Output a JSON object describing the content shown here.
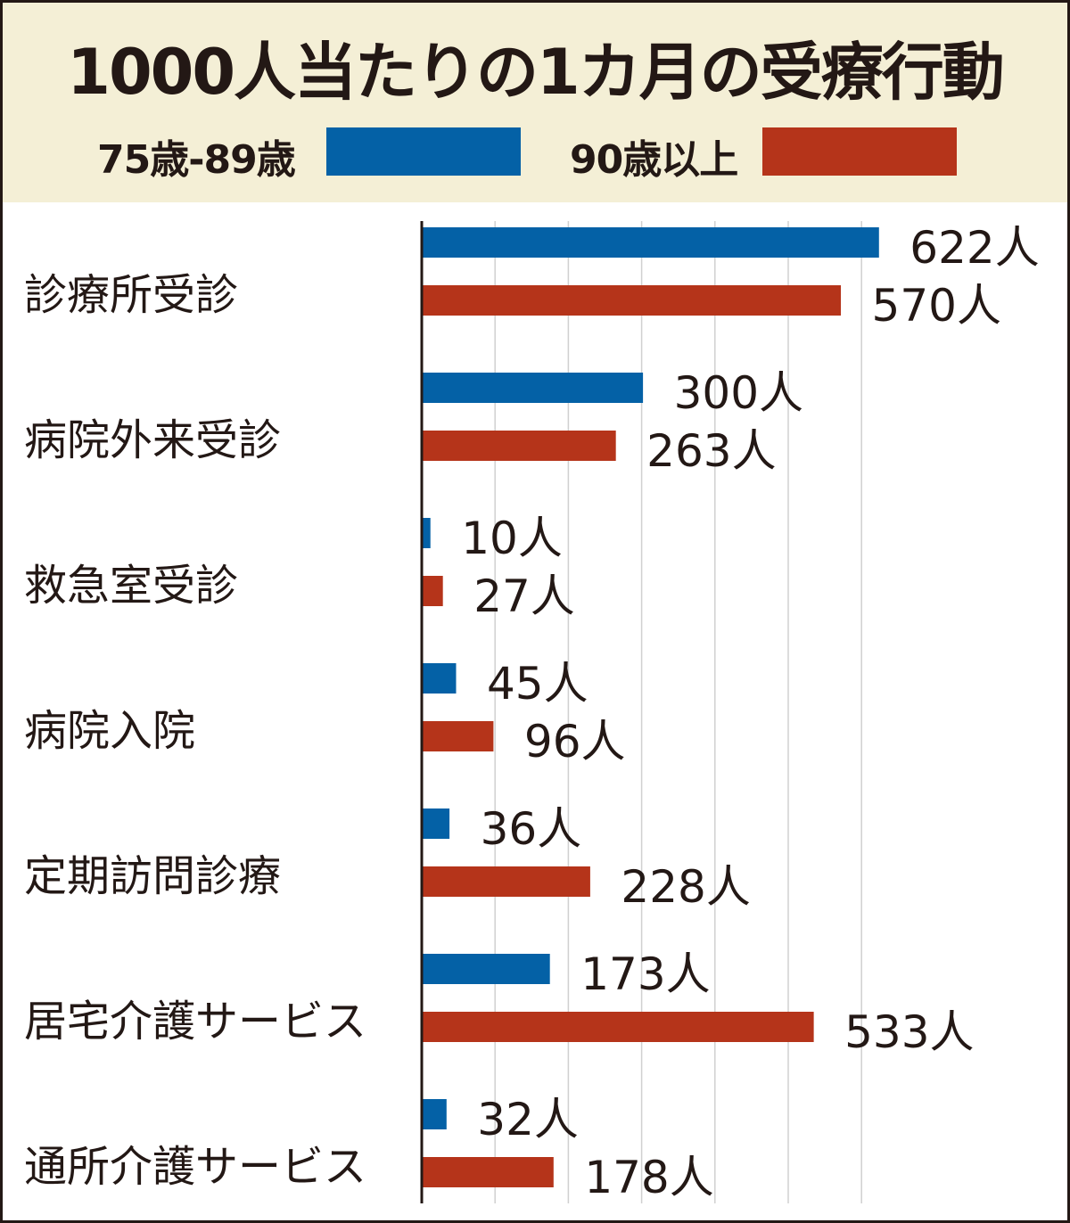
{
  "chart_data": {
    "type": "bar",
    "orientation": "horizontal",
    "title": "1000人当たりの1カ月の受療行動",
    "categories": [
      "診療所受診",
      "病院外来受診",
      "救急室受診",
      "病院入院",
      "定期訪問診療",
      "居宅介護サービス",
      "通所介護サービス"
    ],
    "series": [
      {
        "name": "75歳-89歳",
        "color": "#0461a6",
        "values": [
          622,
          300,
          10,
          45,
          36,
          173,
          32
        ]
      },
      {
        "name": "90歳以上",
        "color": "#b5341a",
        "values": [
          570,
          263,
          27,
          96,
          228,
          533,
          178
        ]
      }
    ],
    "unit_suffix": "人",
    "xlim": [
      0,
      880
    ],
    "gridlines": [
      100,
      200,
      300,
      400,
      500,
      600
    ],
    "grid": true,
    "legend_position": "top",
    "colors": {
      "header_bg": "#f4efd6",
      "text": "#231815",
      "grid": "#d0d0d0"
    }
  }
}
